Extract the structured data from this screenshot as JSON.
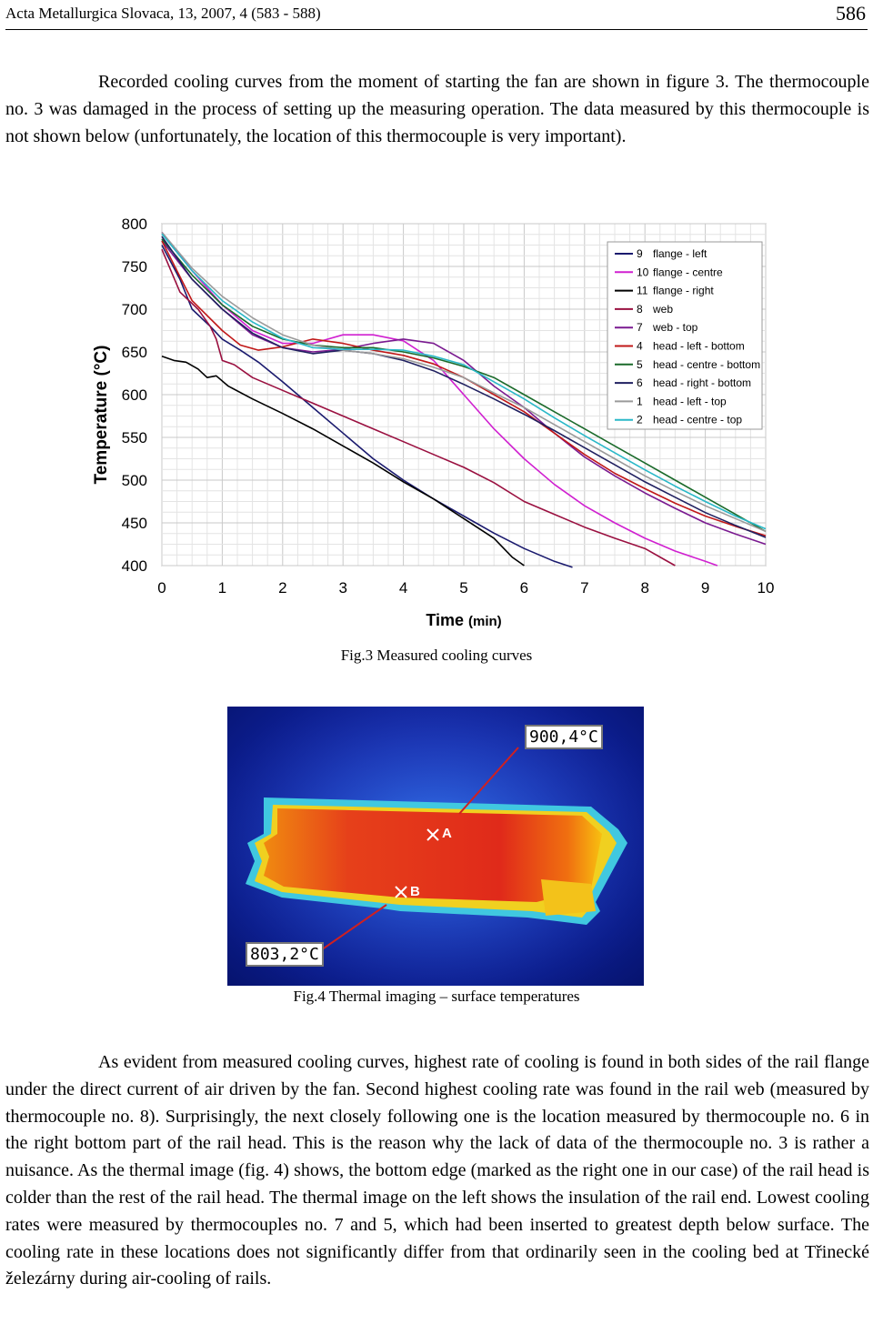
{
  "header": {
    "journal": "Acta Metallurgica Slovaca, 13, 2007, 4 (583 - 588)",
    "page_number": "586"
  },
  "paragraph1": "Recorded cooling curves from the moment of starting the fan are shown in figure 3. The thermocouple no. 3 was damaged in the process of setting up the measuring operation. The data measured by this thermocouple is not shown below (unfortunately, the location of this thermocouple is very important).",
  "figure3": {
    "caption": "Fig.3 Measured cooling curves"
  },
  "figure4": {
    "caption": "Fig.4 Thermal imaging – surface temperatures",
    "label_top": "900,4°C",
    "label_bottom": "803,2°C",
    "marker_a": "A",
    "marker_b": "B"
  },
  "paragraph2": "As evident from measured cooling curves, highest rate of cooling is found in both sides of the rail flange under the direct current of air driven by the fan. Second highest cooling rate was found in the rail web (measured by thermocouple no. 8). Surprisingly, the next closely following one is the location measured by thermocouple no. 6 in the right bottom part of the rail head. This is the reason why the lack of data of the thermocouple no. 3 is rather a nuisance. As the thermal image (fig. 4) shows, the bottom edge (marked as the right one in our case) of the rail head is colder than the rest of the rail head. The thermal image on the left shows the insulation of the rail end. Lowest cooling rates were measured by thermocouples no. 7 and 5, which had been inserted to greatest depth below surface. The cooling rate in these locations does not significantly differ from that ordinarily seen in the cooling bed at Třinecké železárny during air-cooling of rails.",
  "chart_data": {
    "type": "line",
    "title": "",
    "xlabel": "Time",
    "xlabel_unit": "(min)",
    "ylabel": "Temperature (°C)",
    "xlim": [
      0,
      10
    ],
    "ylim": [
      400,
      800
    ],
    "xticks": [
      "0",
      "1",
      "2",
      "3",
      "4",
      "5",
      "6",
      "7",
      "8",
      "9",
      "10"
    ],
    "yticks": [
      "400",
      "450",
      "500",
      "550",
      "600",
      "650",
      "700",
      "750",
      "800"
    ],
    "grid": true,
    "legend_position": "top-right",
    "series": [
      {
        "number": "9",
        "name": "flange - left",
        "color": "#1a1a6e",
        "points": [
          [
            0,
            775
          ],
          [
            0.3,
            735
          ],
          [
            0.5,
            700
          ],
          [
            0.8,
            680
          ],
          [
            1.0,
            665
          ],
          [
            1.3,
            652
          ],
          [
            1.6,
            638
          ],
          [
            2,
            615
          ],
          [
            2.5,
            585
          ],
          [
            3,
            555
          ],
          [
            3.5,
            525
          ],
          [
            4,
            500
          ],
          [
            4.5,
            478
          ],
          [
            5,
            458
          ],
          [
            5.5,
            438
          ],
          [
            6,
            420
          ],
          [
            6.5,
            405
          ],
          [
            6.8,
            398
          ]
        ]
      },
      {
        "number": "10",
        "name": "flange - centre",
        "color": "#d020d0",
        "points": [
          [
            0,
            790
          ],
          [
            0.5,
            745
          ],
          [
            1,
            705
          ],
          [
            1.5,
            675
          ],
          [
            2,
            660
          ],
          [
            2.5,
            660
          ],
          [
            3,
            670
          ],
          [
            3.5,
            670
          ],
          [
            4,
            663
          ],
          [
            4.5,
            640
          ],
          [
            5,
            600
          ],
          [
            5.5,
            560
          ],
          [
            6,
            525
          ],
          [
            6.5,
            495
          ],
          [
            7,
            470
          ],
          [
            7.5,
            450
          ],
          [
            8,
            432
          ],
          [
            8.5,
            417
          ],
          [
            9,
            405
          ],
          [
            9.2,
            400
          ]
        ]
      },
      {
        "number": "11",
        "name": "flange - right",
        "color": "#000000",
        "points": [
          [
            0,
            645
          ],
          [
            0.2,
            640
          ],
          [
            0.4,
            638
          ],
          [
            0.6,
            630
          ],
          [
            0.75,
            620
          ],
          [
            0.9,
            622
          ],
          [
            1.1,
            610
          ],
          [
            1.5,
            595
          ],
          [
            2,
            578
          ],
          [
            2.5,
            560
          ],
          [
            3,
            540
          ],
          [
            3.5,
            520
          ],
          [
            4,
            498
          ],
          [
            4.5,
            478
          ],
          [
            5,
            455
          ],
          [
            5.5,
            432
          ],
          [
            5.8,
            410
          ],
          [
            6,
            400
          ]
        ]
      },
      {
        "number": "8",
        "name": "web",
        "color": "#9a1040",
        "points": [
          [
            0,
            770
          ],
          [
            0.3,
            720
          ],
          [
            0.6,
            700
          ],
          [
            0.8,
            680
          ],
          [
            0.9,
            665
          ],
          [
            1,
            640
          ],
          [
            1.2,
            635
          ],
          [
            1.5,
            620
          ],
          [
            2,
            605
          ],
          [
            2.5,
            590
          ],
          [
            3,
            575
          ],
          [
            3.5,
            560
          ],
          [
            4,
            545
          ],
          [
            4.5,
            530
          ],
          [
            5,
            515
          ],
          [
            5.5,
            497
          ],
          [
            6,
            475
          ],
          [
            6.5,
            460
          ],
          [
            7,
            445
          ],
          [
            7.5,
            432
          ],
          [
            8,
            420
          ],
          [
            8.3,
            408
          ],
          [
            8.5,
            400
          ]
        ]
      },
      {
        "number": "7",
        "name": "web - top",
        "color": "#7a1a90",
        "points": [
          [
            0,
            780
          ],
          [
            0.5,
            735
          ],
          [
            1,
            700
          ],
          [
            1.5,
            670
          ],
          [
            2,
            655
          ],
          [
            2.5,
            650
          ],
          [
            3,
            653
          ],
          [
            3.5,
            660
          ],
          [
            4,
            665
          ],
          [
            4.5,
            660
          ],
          [
            5,
            640
          ],
          [
            5.5,
            610
          ],
          [
            6,
            585
          ],
          [
            6.5,
            555
          ],
          [
            7,
            527
          ],
          [
            7.5,
            505
          ],
          [
            8,
            485
          ],
          [
            8.5,
            467
          ],
          [
            9,
            450
          ],
          [
            9.5,
            437
          ],
          [
            10,
            425
          ]
        ]
      },
      {
        "number": "4",
        "name": "head - left - bottom",
        "color": "#c01818",
        "points": [
          [
            0,
            780
          ],
          [
            0.5,
            710
          ],
          [
            1,
            675
          ],
          [
            1.3,
            658
          ],
          [
            1.6,
            652
          ],
          [
            2,
            656
          ],
          [
            2.5,
            665
          ],
          [
            3,
            660
          ],
          [
            3.5,
            652
          ],
          [
            4,
            646
          ],
          [
            4.5,
            636
          ],
          [
            5,
            620
          ],
          [
            5.5,
            600
          ],
          [
            6,
            580
          ],
          [
            6.5,
            555
          ],
          [
            7,
            530
          ],
          [
            7.5,
            508
          ],
          [
            8,
            490
          ],
          [
            8.5,
            473
          ],
          [
            9,
            458
          ],
          [
            9.5,
            446
          ],
          [
            10,
            435
          ]
        ]
      },
      {
        "number": "5",
        "name": "head - centre - bottom",
        "color": "#1a6a2a",
        "points": [
          [
            0,
            782
          ],
          [
            0.5,
            740
          ],
          [
            1,
            705
          ],
          [
            1.5,
            680
          ],
          [
            2,
            665
          ],
          [
            2.5,
            658
          ],
          [
            3,
            655
          ],
          [
            3.5,
            655
          ],
          [
            4,
            650
          ],
          [
            4.5,
            643
          ],
          [
            5,
            633
          ],
          [
            5.5,
            620
          ],
          [
            6,
            600
          ],
          [
            6.5,
            580
          ],
          [
            7,
            560
          ],
          [
            7.5,
            540
          ],
          [
            8,
            520
          ],
          [
            8.5,
            500
          ],
          [
            9,
            480
          ],
          [
            9.5,
            460
          ],
          [
            10,
            440
          ]
        ]
      },
      {
        "number": "6",
        "name": "head - right - bottom",
        "color": "#202060",
        "points": [
          [
            0,
            785
          ],
          [
            0.5,
            735
          ],
          [
            1,
            700
          ],
          [
            1.5,
            672
          ],
          [
            2,
            655
          ],
          [
            2.5,
            648
          ],
          [
            3,
            652
          ],
          [
            3.5,
            648
          ],
          [
            4,
            640
          ],
          [
            4.5,
            628
          ],
          [
            5,
            612
          ],
          [
            5.5,
            595
          ],
          [
            6,
            577
          ],
          [
            6.5,
            558
          ],
          [
            7,
            538
          ],
          [
            7.5,
            518
          ],
          [
            8,
            498
          ],
          [
            8.5,
            480
          ],
          [
            9,
            462
          ],
          [
            9.5,
            447
          ],
          [
            10,
            433
          ]
        ]
      },
      {
        "number": "1",
        "name": "head - left - top",
        "color": "#9a9a9a",
        "points": [
          [
            0,
            790
          ],
          [
            0.5,
            748
          ],
          [
            1,
            715
          ],
          [
            1.5,
            690
          ],
          [
            2,
            670
          ],
          [
            2.5,
            658
          ],
          [
            3,
            652
          ],
          [
            3.5,
            648
          ],
          [
            4,
            642
          ],
          [
            4.5,
            632
          ],
          [
            5,
            620
          ],
          [
            5.5,
            602
          ],
          [
            6,
            585
          ],
          [
            6.5,
            565
          ],
          [
            7,
            545
          ],
          [
            7.5,
            525
          ],
          [
            8,
            505
          ],
          [
            8.5,
            487
          ],
          [
            9,
            470
          ],
          [
            9.5,
            455
          ],
          [
            10,
            440
          ]
        ]
      },
      {
        "number": "2",
        "name": "head - centre - top",
        "color": "#2ab8c8",
        "points": [
          [
            0,
            788
          ],
          [
            0.5,
            745
          ],
          [
            1,
            710
          ],
          [
            1.5,
            685
          ],
          [
            2,
            666
          ],
          [
            2.5,
            655
          ],
          [
            3,
            653
          ],
          [
            3.5,
            653
          ],
          [
            4,
            652
          ],
          [
            4.5,
            645
          ],
          [
            5,
            635
          ],
          [
            5.5,
            615
          ],
          [
            6,
            595
          ],
          [
            6.5,
            573
          ],
          [
            7,
            552
          ],
          [
            7.5,
            532
          ],
          [
            8,
            512
          ],
          [
            8.5,
            493
          ],
          [
            9,
            475
          ],
          [
            9.5,
            458
          ],
          [
            10,
            443
          ]
        ]
      }
    ]
  }
}
